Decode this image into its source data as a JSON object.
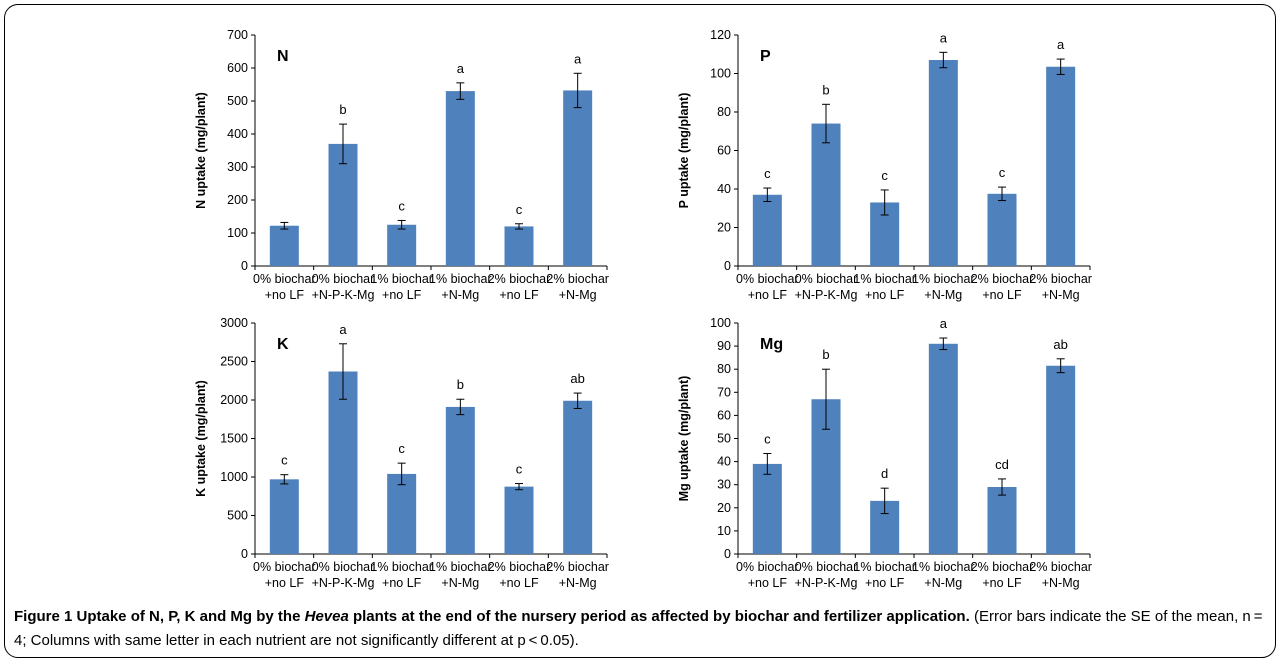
{
  "figure": {
    "caption_bold_1": "Figure 1 Uptake of N, P, K and Mg by the ",
    "caption_italic": "Hevea",
    "caption_bold_2": " plants at the end of the nursery period as affected by biochar and fertilizer application.",
    "caption_normal": " (Error bars indicate the SE of the mean, n = 4; Columns with same letter in each nutrient are not significantly different at p < 0.05)."
  },
  "colors": {
    "bar": "#4f81bd",
    "axis": "#000000"
  },
  "chart_data": [
    {
      "type": "bar",
      "title": "N",
      "ylabel": "N uptake (mg/plant)",
      "xlabel": "",
      "ylim": [
        0,
        700
      ],
      "ytick_step": 100,
      "grid": false,
      "categories": [
        [
          "0% biochar",
          "+no LF"
        ],
        [
          "0% biochar",
          "+N-P-K-Mg"
        ],
        [
          "1% biochar",
          "+no LF"
        ],
        [
          "1% biochar",
          "+N-Mg"
        ],
        [
          "2% biochar",
          "+no LF"
        ],
        [
          "2% biochar",
          "+N-Mg"
        ]
      ],
      "values": [
        122,
        370,
        125,
        530,
        120,
        532
      ],
      "errors": [
        10,
        60,
        13,
        25,
        8,
        52
      ],
      "letters": [
        "",
        "b",
        "c",
        "a",
        "c",
        "a"
      ]
    },
    {
      "type": "bar",
      "title": "P",
      "ylabel": "P uptake (mg/plant)",
      "xlabel": "",
      "ylim": [
        0,
        120
      ],
      "ytick_step": 20,
      "grid": false,
      "categories": [
        [
          "0% biochar",
          "+no LF"
        ],
        [
          "0% biochar",
          "+N-P-K-Mg"
        ],
        [
          "1% biochar",
          "+no LF"
        ],
        [
          "1% biochar",
          "+N-Mg"
        ],
        [
          "2% biochar",
          "+no LF"
        ],
        [
          "2% biochar",
          "+N-Mg"
        ]
      ],
      "values": [
        37,
        74,
        33,
        107,
        37.5,
        103.5
      ],
      "errors": [
        3.5,
        10,
        6.5,
        4,
        3.5,
        4
      ],
      "letters": [
        "c",
        "b",
        "c",
        "a",
        "c",
        "a"
      ]
    },
    {
      "type": "bar",
      "title": "K",
      "ylabel": "K uptake (mg/plant)",
      "xlabel": "",
      "ylim": [
        0,
        3000
      ],
      "ytick_step": 500,
      "grid": false,
      "categories": [
        [
          "0% biochar",
          "+no LF"
        ],
        [
          "0% biochar",
          "+N-P-K-Mg"
        ],
        [
          "1% biochar",
          "+no LF"
        ],
        [
          "1% biochar",
          "+N-Mg"
        ],
        [
          "2% biochar",
          "+no LF"
        ],
        [
          "2% biochar",
          "+N-Mg"
        ]
      ],
      "values": [
        970,
        2370,
        1040,
        1910,
        875,
        1990
      ],
      "errors": [
        60,
        360,
        140,
        100,
        40,
        100
      ],
      "letters": [
        "c",
        "a",
        "c",
        "b",
        "c",
        "ab"
      ]
    },
    {
      "type": "bar",
      "title": "Mg",
      "ylabel": "Mg uptake (mg/plant)",
      "xlabel": "",
      "ylim": [
        0,
        100
      ],
      "ytick_step": 10,
      "grid": false,
      "categories": [
        [
          "0% biochar",
          "+no LF"
        ],
        [
          "0% biochar",
          "+N-P-K-Mg"
        ],
        [
          "1% biochar",
          "+no LF"
        ],
        [
          "1% biochar",
          "+N-Mg"
        ],
        [
          "2% biochar",
          "+no LF"
        ],
        [
          "2% biochar",
          "+N-Mg"
        ]
      ],
      "values": [
        39,
        67,
        23,
        91,
        29,
        81.5
      ],
      "errors": [
        4.5,
        13,
        5.5,
        2.5,
        3.5,
        3
      ],
      "letters": [
        "c",
        "b",
        "d",
        "a",
        "cd",
        "ab"
      ]
    }
  ]
}
